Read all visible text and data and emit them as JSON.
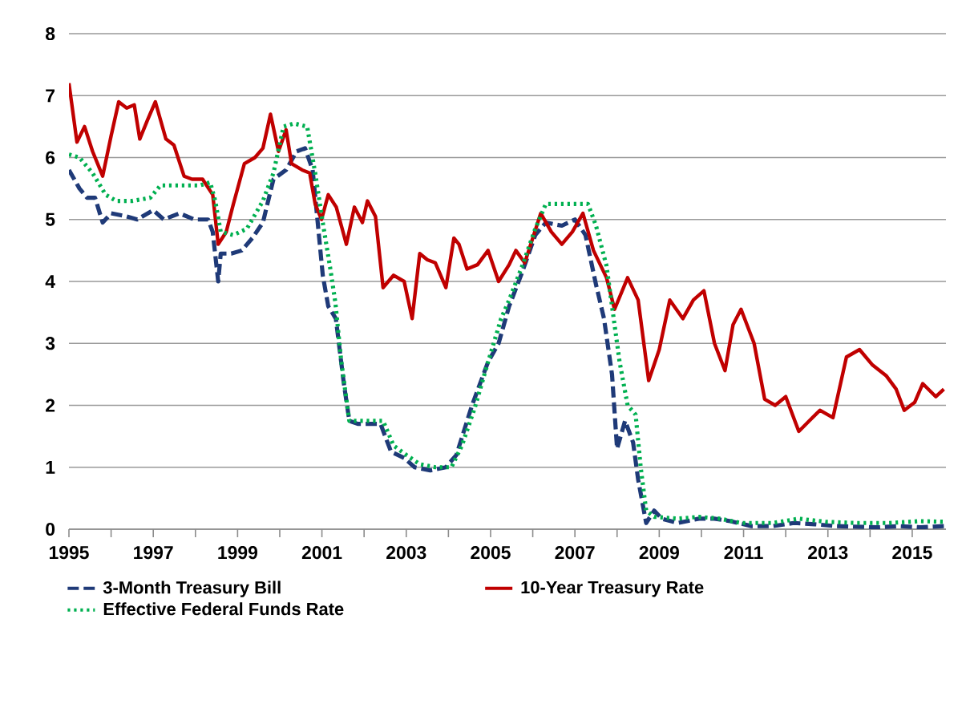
{
  "chart_data": {
    "type": "line",
    "xlim": [
      1995,
      2015.8
    ],
    "ylim": [
      0,
      8
    ],
    "xticks": [
      1995,
      {
        "value": 1996,
        "label": null
      },
      1997,
      {
        "value": 1998,
        "label": null
      },
      1999,
      {
        "value": 2000,
        "label": null
      },
      2001,
      {
        "value": 2002,
        "label": null
      },
      2003,
      {
        "value": 2004,
        "label": null
      },
      2005,
      {
        "value": 2006,
        "label": null
      },
      2007,
      {
        "value": 2008,
        "label": null
      },
      2009,
      {
        "value": 2010,
        "label": null
      },
      2011,
      {
        "value": 2012,
        "label": null
      },
      2013,
      {
        "value": 2014,
        "label": null
      },
      2015
    ],
    "yticks": [
      0,
      1,
      2,
      3,
      4,
      5,
      6,
      7,
      8
    ],
    "grid": "y",
    "legend": "bottom",
    "series": [
      {
        "name": "3-Month Treasury Bill",
        "color": "#1f3a78",
        "line_style": "dashed",
        "x": [
          1995.0,
          1995.25,
          1995.43,
          1995.62,
          1995.8,
          1996.0,
          1996.37,
          1996.62,
          1997.0,
          1997.25,
          1997.62,
          1997.98,
          1998.3,
          1998.41,
          1998.54,
          1998.6,
          1998.85,
          1999.1,
          1999.35,
          1999.6,
          1999.85,
          2000.15,
          2000.4,
          2000.6,
          2000.78,
          2000.9,
          2001.02,
          2001.15,
          2001.33,
          2001.52,
          2001.65,
          2001.85,
          2002.1,
          2002.39,
          2002.64,
          2002.95,
          2003.2,
          2003.57,
          2003.94,
          2004.19,
          2004.56,
          2004.94,
          2005.19,
          2005.44,
          2005.75,
          2006.06,
          2006.31,
          2006.69,
          2007.0,
          2007.25,
          2007.5,
          2007.69,
          2007.88,
          2008.0,
          2008.19,
          2008.38,
          2008.5,
          2008.69,
          2008.88,
          2009.06,
          2009.44,
          2009.94,
          2010.31,
          2010.69,
          2011.19,
          2011.69,
          2012.19,
          2012.69,
          2013.19,
          2013.69,
          2014.19,
          2014.69,
          2015.19,
          2015.75
        ],
        "values": [
          5.8,
          5.5,
          5.35,
          5.35,
          4.95,
          5.1,
          5.05,
          5.0,
          5.15,
          5.0,
          5.1,
          5.0,
          5.0,
          4.8,
          4.0,
          4.45,
          4.45,
          4.5,
          4.7,
          4.95,
          5.65,
          5.8,
          6.1,
          6.15,
          5.8,
          4.95,
          4.1,
          3.6,
          3.4,
          2.35,
          1.75,
          1.7,
          1.7,
          1.7,
          1.25,
          1.15,
          1.0,
          0.95,
          1.0,
          1.2,
          2.0,
          2.7,
          3.0,
          3.6,
          4.15,
          4.75,
          4.95,
          4.9,
          5.0,
          4.75,
          3.95,
          3.4,
          2.5,
          1.3,
          1.75,
          1.4,
          0.8,
          0.1,
          0.3,
          0.17,
          0.1,
          0.17,
          0.17,
          0.13,
          0.05,
          0.05,
          0.1,
          0.08,
          0.05,
          0.04,
          0.03,
          0.05,
          0.03,
          0.05
        ]
      },
      {
        "name": "10-Year Treasury Rate",
        "color": "#c00000",
        "line_style": "solid",
        "x": [
          1995.0,
          1995.19,
          1995.37,
          1995.56,
          1995.8,
          1996.0,
          1996.18,
          1996.37,
          1996.55,
          1996.68,
          1996.86,
          1997.05,
          1997.3,
          1997.49,
          1997.73,
          1997.92,
          1998.17,
          1998.41,
          1998.54,
          1998.73,
          1998.9,
          1999.16,
          1999.41,
          1999.6,
          1999.78,
          1999.97,
          2000.15,
          2000.28,
          2000.53,
          2000.71,
          2000.84,
          2000.99,
          2001.15,
          2001.34,
          2001.58,
          2001.77,
          2001.96,
          2002.08,
          2002.27,
          2002.45,
          2002.7,
          2002.95,
          2003.14,
          2003.32,
          2003.5,
          2003.69,
          2003.94,
          2004.13,
          2004.25,
          2004.44,
          2004.69,
          2004.94,
          2005.19,
          2005.44,
          2005.6,
          2005.81,
          2006.19,
          2006.44,
          2006.69,
          2006.94,
          2007.19,
          2007.44,
          2007.75,
          2007.94,
          2008.25,
          2008.5,
          2008.75,
          2009.0,
          2009.25,
          2009.56,
          2009.81,
          2010.06,
          2010.31,
          2010.56,
          2010.75,
          2010.94,
          2011.25,
          2011.5,
          2011.75,
          2012.0,
          2012.31,
          2012.56,
          2012.81,
          2013.12,
          2013.44,
          2013.75,
          2014.06,
          2014.38,
          2014.62,
          2014.81,
          2015.06,
          2015.25,
          2015.56,
          2015.75
        ],
        "values": [
          7.2,
          6.25,
          6.5,
          6.1,
          5.7,
          6.35,
          6.9,
          6.8,
          6.85,
          6.3,
          6.6,
          6.9,
          6.3,
          6.2,
          5.7,
          5.65,
          5.65,
          5.4,
          4.6,
          4.8,
          5.25,
          5.9,
          6.0,
          6.15,
          6.7,
          6.1,
          6.45,
          5.9,
          5.8,
          5.75,
          5.25,
          5.0,
          5.4,
          5.2,
          4.6,
          5.2,
          4.95,
          5.3,
          5.05,
          3.9,
          4.1,
          4.0,
          3.4,
          4.45,
          4.35,
          4.3,
          3.9,
          4.7,
          4.6,
          4.2,
          4.27,
          4.5,
          4.0,
          4.27,
          4.5,
          4.3,
          5.1,
          4.8,
          4.6,
          4.8,
          5.1,
          4.5,
          4.06,
          3.55,
          4.06,
          3.7,
          2.4,
          2.9,
          3.7,
          3.4,
          3.7,
          3.85,
          3.0,
          2.56,
          3.3,
          3.55,
          3.0,
          2.1,
          2.0,
          2.14,
          1.58,
          1.75,
          1.92,
          1.8,
          2.78,
          2.9,
          2.65,
          2.48,
          2.26,
          1.92,
          2.05,
          2.35,
          2.14,
          2.26
        ]
      },
      {
        "name": "Effective Federal Funds Rate",
        "color": "#00b050",
        "line_style": "dotted",
        "x": [
          1995.0,
          1995.25,
          1995.56,
          1995.87,
          1996.12,
          1996.5,
          1996.93,
          1997.17,
          1997.6,
          1998.1,
          1998.35,
          1998.47,
          1998.6,
          1998.9,
          1999.22,
          1999.6,
          1999.85,
          2000.09,
          2000.34,
          2000.65,
          2000.84,
          2001.02,
          2001.2,
          2001.32,
          2001.46,
          2001.65,
          2002.08,
          2002.45,
          2002.7,
          2003.0,
          2003.32,
          2003.69,
          2004.07,
          2004.32,
          2004.62,
          2004.94,
          2005.25,
          2005.44,
          2005.75,
          2006.06,
          2006.31,
          2007.31,
          2007.5,
          2007.75,
          2007.88,
          2008.06,
          2008.25,
          2008.44,
          2008.56,
          2008.69,
          2008.88,
          2009.44,
          2009.94,
          2010.44,
          2010.94,
          2011.69,
          2012.31,
          2012.94,
          2013.69,
          2014.44,
          2015.19,
          2015.75
        ],
        "values": [
          6.05,
          6.0,
          5.75,
          5.4,
          5.3,
          5.3,
          5.35,
          5.55,
          5.55,
          5.55,
          5.6,
          5.3,
          4.8,
          4.75,
          4.85,
          5.3,
          5.75,
          6.5,
          6.55,
          6.5,
          5.75,
          4.95,
          4.2,
          3.65,
          2.7,
          1.75,
          1.75,
          1.75,
          1.35,
          1.2,
          1.05,
          1.0,
          1.0,
          1.35,
          1.95,
          2.7,
          3.4,
          3.7,
          4.25,
          4.85,
          5.25,
          5.25,
          4.9,
          4.25,
          3.6,
          2.7,
          2.0,
          1.85,
          1.0,
          0.3,
          0.2,
          0.17,
          0.2,
          0.17,
          0.1,
          0.1,
          0.17,
          0.12,
          0.1,
          0.1,
          0.13,
          0.12
        ]
      }
    ]
  }
}
